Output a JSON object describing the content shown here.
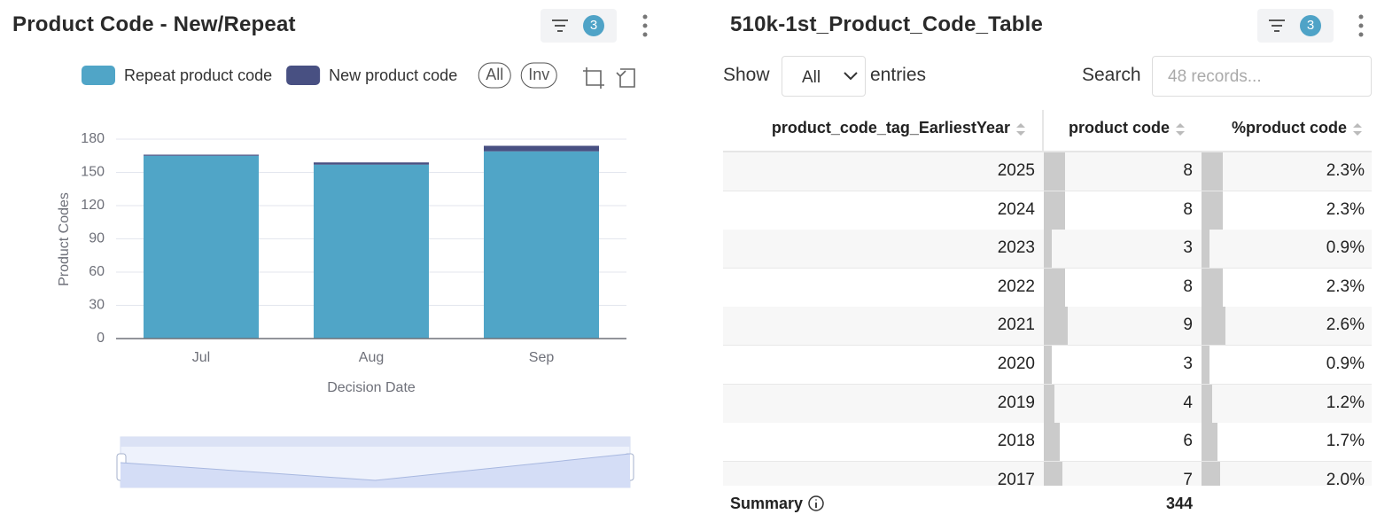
{
  "chart_panel": {
    "title": "Product Code - New/Repeat",
    "filter_count": 3,
    "legend_buttons": [
      "All",
      "Inv"
    ]
  },
  "chart_data": {
    "type": "bar",
    "stacked": true,
    "x_label": "Decision Date",
    "y_label": "Product Codes",
    "categories": [
      "Jul",
      "Aug",
      "Sep"
    ],
    "series": [
      {
        "name": "Repeat product code",
        "color": "#50a5c7",
        "values": [
          165,
          157,
          169
        ]
      },
      {
        "name": "New product code",
        "color": "#485082",
        "values": [
          1,
          2,
          5
        ]
      }
    ],
    "ylim": [
      0,
      180
    ],
    "yticks": [
      0,
      30,
      60,
      90,
      120,
      150,
      180
    ],
    "grid": true
  },
  "table_panel": {
    "title": "510k-1st_Product_Code_Table",
    "filter_count": 3,
    "show_label": "Show",
    "entries_select": "All",
    "entries_label": "entries",
    "search_label": "Search",
    "search_placeholder": "48 records...",
    "columns": [
      "product_code_tag_EarliestYear",
      "product code",
      "%product code"
    ],
    "rows": [
      [
        2025,
        8,
        "2.3%"
      ],
      [
        2024,
        8,
        "2.3%"
      ],
      [
        2023,
        3,
        "0.9%"
      ],
      [
        2022,
        8,
        "2.3%"
      ],
      [
        2021,
        9,
        "2.6%"
      ],
      [
        2020,
        3,
        "0.9%"
      ],
      [
        2019,
        4,
        "1.2%"
      ],
      [
        2018,
        6,
        "1.7%"
      ],
      [
        2017,
        7,
        "2.0%"
      ]
    ],
    "summary_label": "Summary",
    "summary_value": 344
  }
}
